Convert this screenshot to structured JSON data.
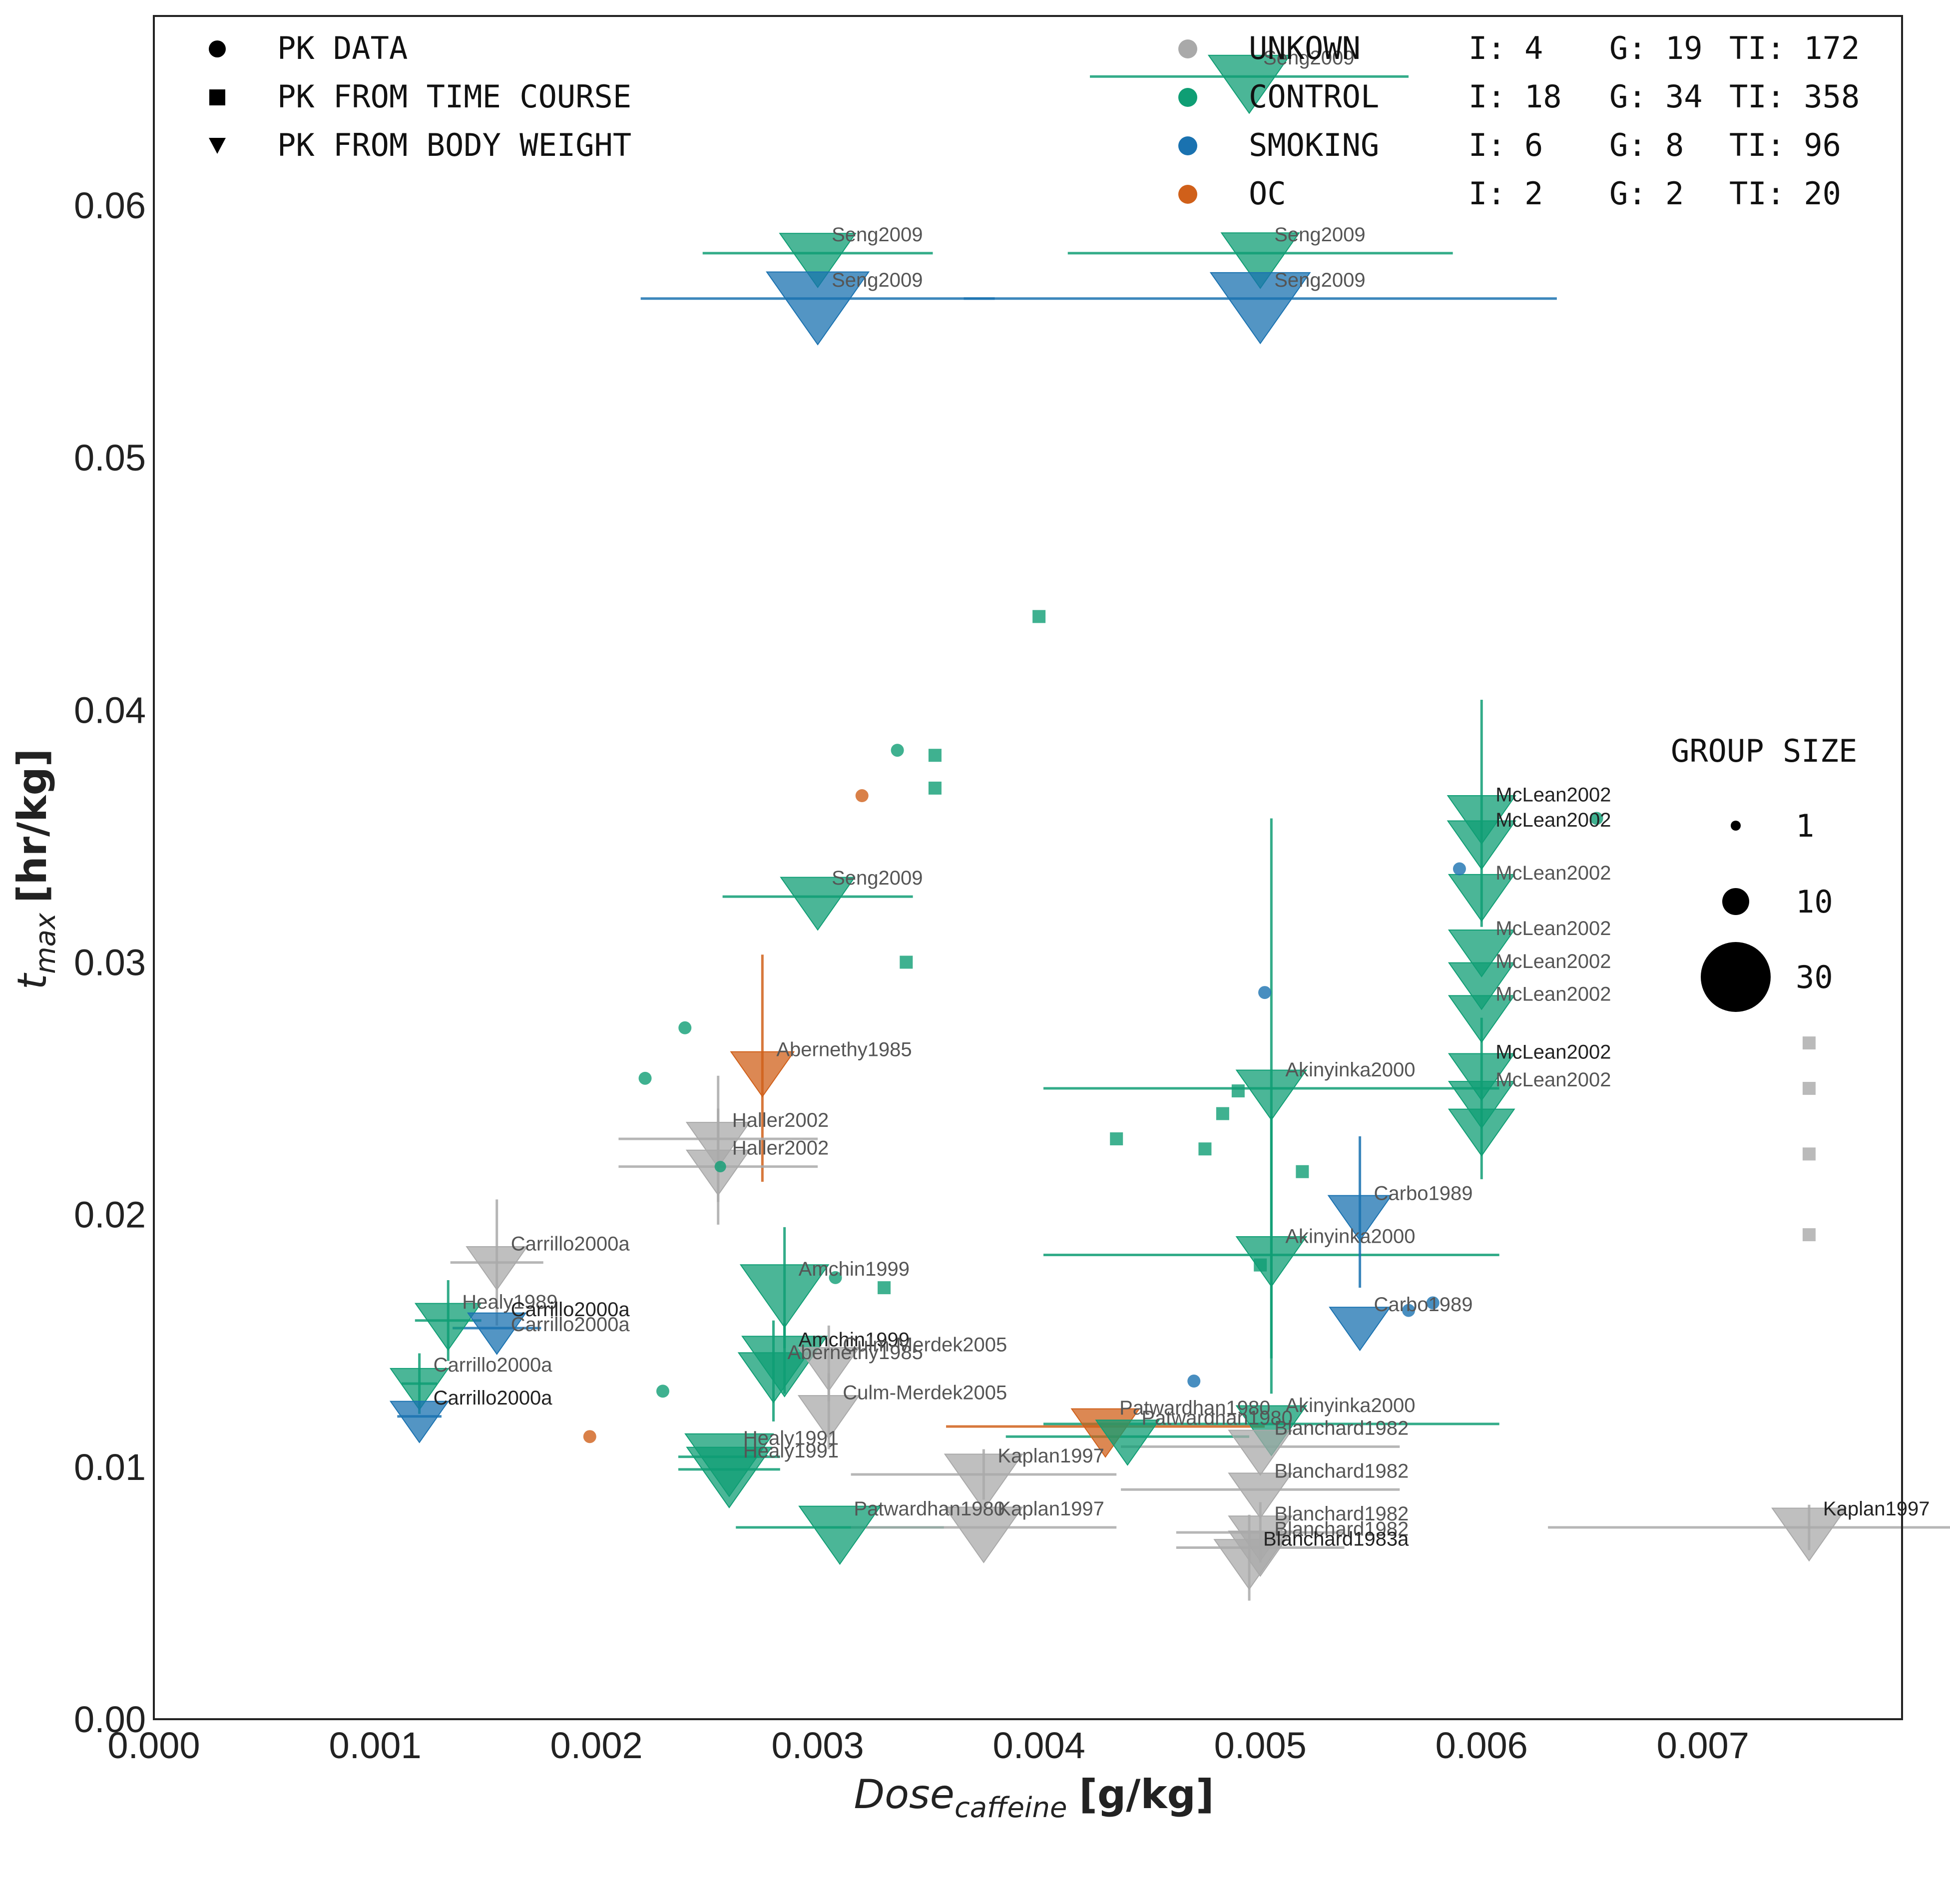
{
  "chart_data": {
    "type": "scatter",
    "xlabel": {
      "main": "Dose",
      "sub": "caffeine",
      "unit": "[g/kg]"
    },
    "ylabel": {
      "main": "t",
      "sub": "max",
      "unit": "[hr/kg]"
    },
    "xlim": [
      0,
      0.0079
    ],
    "ylim": [
      0,
      0.0675
    ],
    "xticks": [
      "0.000",
      "0.001",
      "0.002",
      "0.003",
      "0.004",
      "0.005",
      "0.006",
      "0.007"
    ],
    "yticks": [
      "0.00",
      "0.01",
      "0.02",
      "0.03",
      "0.04",
      "0.05",
      "0.06"
    ],
    "grid": false,
    "colors": {
      "UNKOWN": "#a9a9a9",
      "CONTROL": "#0f9e74",
      "SMOKING": "#1a72b0",
      "OC": "#d0601a"
    },
    "legend_markers": {
      "items": [
        {
          "marker": "circle",
          "label": "PK DATA"
        },
        {
          "marker": "square",
          "label": "PK FROM TIME COURSE"
        },
        {
          "marker": "triangle",
          "label": "PK FROM BODY WEIGHT"
        }
      ]
    },
    "legend_groups": {
      "items": [
        {
          "name": "UNKOWN",
          "color": "#a9a9a9",
          "I": "I: 4",
          "G": "G: 19",
          "TI": "TI: 172"
        },
        {
          "name": "CONTROL",
          "color": "#0f9e74",
          "I": "I: 18",
          "G": "G: 34",
          "TI": "TI: 358"
        },
        {
          "name": "SMOKING",
          "color": "#1a72b0",
          "I": "I: 6",
          "G": "G: 8",
          "TI": "TI: 96"
        },
        {
          "name": "OC",
          "color": "#d0601a",
          "I": "I: 2",
          "G": "G: 2",
          "TI": "TI: 20"
        }
      ]
    },
    "size_legend": {
      "title": "GROUP SIZE",
      "items": [
        {
          "label": "1",
          "n": 1
        },
        {
          "label": "10",
          "n": 10
        },
        {
          "label": "30",
          "n": 30
        }
      ]
    },
    "points": [
      {
        "x": 0.00495,
        "y": 0.0651,
        "cat": "CONTROL",
        "m": "tri",
        "n": 18,
        "xerr": 0.00072,
        "label": "Seng2009"
      },
      {
        "x": 0.003,
        "y": 0.0581,
        "cat": "CONTROL",
        "m": "tri",
        "n": 15,
        "xerr": 0.00052,
        "label": "Seng2009"
      },
      {
        "x": 0.005,
        "y": 0.0581,
        "cat": "CONTROL",
        "m": "tri",
        "n": 16,
        "xerr": 0.00087,
        "label": "Seng2009"
      },
      {
        "x": 0.003,
        "y": 0.0563,
        "cat": "SMOKING",
        "m": "tri",
        "n": 32,
        "xerr": 0.0008,
        "label": "Seng2009"
      },
      {
        "x": 0.005,
        "y": 0.0563,
        "cat": "SMOKING",
        "m": "tri",
        "n": 30,
        "xerr": 0.00134,
        "label": "Seng2009"
      },
      {
        "x": 0.003,
        "y": 0.0326,
        "cat": "CONTROL",
        "m": "tri",
        "n": 14,
        "xerr": 0.00043,
        "label": "Seng2009"
      },
      {
        "x": 0.00275,
        "y": 0.0258,
        "cat": "OC",
        "m": "tri",
        "n": 9,
        "yerr": 0.0045,
        "label": "Abernethy1985"
      },
      {
        "x": 0.00255,
        "y": 0.023,
        "cat": "UNKOWN",
        "m": "tri",
        "n": 9,
        "yerr": 0.0025,
        "xerr": 0.00045,
        "label": "Haller2002"
      },
      {
        "x": 0.00255,
        "y": 0.0219,
        "cat": "UNKOWN",
        "m": "tri",
        "n": 9,
        "yerr": 0.0023,
        "xerr": 0.00045,
        "label": "Haller2002"
      },
      {
        "x": 0.00155,
        "y": 0.0181,
        "cat": "UNKOWN",
        "m": "tri",
        "n": 8,
        "yerr": 0.0025,
        "xerr": 0.00021,
        "label": "Carrillo2000a"
      },
      {
        "x": 0.00133,
        "y": 0.0158,
        "cat": "CONTROL",
        "m": "tri",
        "n": 10,
        "yerr": 0.0016,
        "xerr": 0.00015,
        "label": "Healy1989"
      },
      {
        "x": 0.00155,
        "y": 0.0155,
        "cat": "SMOKING",
        "m": "tri",
        "n": 7,
        "xerr": 0.0002,
        "label": "Carrillo2000a",
        "dark": true
      },
      {
        "x": 0.00155,
        "y": 0.0155,
        "cat": "SMOKING",
        "m": "tri",
        "n": 7,
        "label": "Carrillo2000a",
        "noMarker": true,
        "offY": 30
      },
      {
        "x": 0.0012,
        "y": 0.0133,
        "cat": "CONTROL",
        "m": "tri",
        "n": 7,
        "yerr": 0.0012,
        "xerr": 8e-05,
        "label": "Carrillo2000a"
      },
      {
        "x": 0.0012,
        "y": 0.012,
        "cat": "SMOKING",
        "m": "tri",
        "n": 7,
        "xerr": 0.0001,
        "label": "Carrillo2000a",
        "dark": true
      },
      {
        "x": 0.00285,
        "y": 0.0171,
        "cat": "CONTROL",
        "m": "tri",
        "n": 22,
        "yerr": 0.0024,
        "label": "Amchin1999"
      },
      {
        "x": 0.00285,
        "y": 0.0143,
        "cat": "CONTROL",
        "m": "tri",
        "n": 20,
        "yerr": 0.0014,
        "label": "Amchin1999",
        "dark": true
      },
      {
        "x": 0.0028,
        "y": 0.0138,
        "cat": "CONTROL",
        "m": "tri",
        "n": 12,
        "yerr": 0.002,
        "label": "Abernethy1985"
      },
      {
        "x": 0.00305,
        "y": 0.0141,
        "cat": "UNKOWN",
        "m": "tri",
        "n": 8,
        "yerr": 0.0015,
        "label": "Culm-Merdek2005"
      },
      {
        "x": 0.00305,
        "y": 0.0122,
        "cat": "UNKOWN",
        "m": "tri",
        "n": 8,
        "yerr": 0.0015,
        "label": "Culm-Merdek2005"
      },
      {
        "x": 0.0026,
        "y": 0.0104,
        "cat": "CONTROL",
        "m": "tri",
        "n": 22,
        "xerr": 0.00023,
        "label": "Healy1991"
      },
      {
        "x": 0.0026,
        "y": 0.0099,
        "cat": "CONTROL",
        "m": "tri",
        "n": 20,
        "xerr": 0.00023,
        "label": "Healy1991"
      },
      {
        "x": 0.0031,
        "y": 0.0076,
        "cat": "CONTROL",
        "m": "tri",
        "n": 18,
        "xerr": 0.00047,
        "label": "Patwardhan1980"
      },
      {
        "x": 0.00375,
        "y": 0.0097,
        "cat": "UNKOWN",
        "m": "tri",
        "n": 16,
        "yerr": 0.001,
        "xerr": 0.0006,
        "label": "Kaplan1997"
      },
      {
        "x": 0.00375,
        "y": 0.0076,
        "cat": "UNKOWN",
        "m": "tri",
        "n": 16,
        "xerr": 0.0006,
        "label": "Kaplan1997"
      },
      {
        "x": 0.0043,
        "y": 0.0116,
        "cat": "OC",
        "m": "tri",
        "n": 11,
        "xerr": 0.00072,
        "label": "Patwardhan1980"
      },
      {
        "x": 0.0044,
        "y": 0.0112,
        "cat": "CONTROL",
        "m": "tri",
        "n": 9,
        "xerr": 0.00055,
        "label": "Patwardhan1980"
      },
      {
        "x": 0.00505,
        "y": 0.025,
        "cat": "CONTROL",
        "m": "tri",
        "n": 12,
        "yerr": 0.0107,
        "xerr": 0.00103,
        "label": "Akinyinka2000"
      },
      {
        "x": 0.00505,
        "y": 0.0184,
        "cat": "CONTROL",
        "m": "tri",
        "n": 12,
        "yerr": 0.0055,
        "xerr": 0.00103,
        "label": "Akinyinka2000"
      },
      {
        "x": 0.00505,
        "y": 0.0117,
        "cat": "CONTROL",
        "m": "tri",
        "n": 12,
        "xerr": 0.00103,
        "label": "Akinyinka2000"
      },
      {
        "x": 0.005,
        "y": 0.0108,
        "cat": "UNKOWN",
        "m": "tri",
        "n": 9,
        "xerr": 0.00063,
        "label": "Blanchard1982"
      },
      {
        "x": 0.005,
        "y": 0.0091,
        "cat": "UNKOWN",
        "m": "tri",
        "n": 9,
        "xerr": 0.00063,
        "label": "Blanchard1982"
      },
      {
        "x": 0.005,
        "y": 0.0074,
        "cat": "UNKOWN",
        "m": "tri",
        "n": 9,
        "yerr": 0.0012,
        "xerr": 0.00038,
        "label": "Blanchard1982"
      },
      {
        "x": 0.005,
        "y": 0.0068,
        "cat": "UNKOWN",
        "m": "tri",
        "n": 9,
        "xerr": 0.00038,
        "label": "Blanchard1982"
      },
      {
        "x": 0.00495,
        "y": 0.0064,
        "cat": "UNKOWN",
        "m": "tri",
        "n": 12,
        "yerr": 0.0017,
        "label": "Blanchard1983a",
        "dark": true
      },
      {
        "x": 0.006,
        "y": 0.0359,
        "cat": "CONTROL",
        "m": "tri",
        "n": 11,
        "yerr": 0.0045,
        "label": "McLean2002",
        "dark": true
      },
      {
        "x": 0.006,
        "y": 0.0349,
        "cat": "CONTROL",
        "m": "tri",
        "n": 11,
        "label": "McLean2002",
        "dark": true
      },
      {
        "x": 0.006,
        "y": 0.0328,
        "cat": "CONTROL",
        "m": "tri",
        "n": 10,
        "label": "McLean2002"
      },
      {
        "x": 0.006,
        "y": 0.0306,
        "cat": "CONTROL",
        "m": "tri",
        "n": 10,
        "label": "McLean2002"
      },
      {
        "x": 0.006,
        "y": 0.0293,
        "cat": "CONTROL",
        "m": "tri",
        "n": 10,
        "label": "McLean2002"
      },
      {
        "x": 0.006,
        "y": 0.028,
        "cat": "CONTROL",
        "m": "tri",
        "n": 10,
        "label": "McLean2002"
      },
      {
        "x": 0.006,
        "y": 0.0257,
        "cat": "CONTROL",
        "m": "tri",
        "n": 10,
        "label": "McLean2002",
        "dark": true
      },
      {
        "x": 0.006,
        "y": 0.0246,
        "cat": "CONTROL",
        "m": "tri",
        "n": 10,
        "yerr": 0.0032,
        "label": "McLean2002"
      },
      {
        "x": 0.006,
        "y": 0.0235,
        "cat": "CONTROL",
        "m": "tri",
        "n": 10
      },
      {
        "x": 0.00545,
        "y": 0.0201,
        "cat": "SMOKING",
        "m": "tri",
        "n": 9,
        "yerr": 0.003,
        "label": "Carbo1989"
      },
      {
        "x": 0.00545,
        "y": 0.0157,
        "cat": "SMOKING",
        "m": "tri",
        "n": 8,
        "label": "Carbo1989"
      },
      {
        "x": 0.00748,
        "y": 0.0076,
        "cat": "UNKOWN",
        "m": "tri",
        "n": 14,
        "yerr": 0.0009,
        "xerr": 0.00118,
        "label": "Kaplan1997",
        "dark": true
      },
      {
        "x": 0.00336,
        "y": 0.0384,
        "cat": "CONTROL",
        "m": "circ",
        "n": 2
      },
      {
        "x": 0.0024,
        "y": 0.0274,
        "cat": "CONTROL",
        "m": "circ",
        "n": 2
      },
      {
        "x": 0.00222,
        "y": 0.0254,
        "cat": "CONTROL",
        "m": "circ",
        "n": 2
      },
      {
        "x": 0.0032,
        "y": 0.0366,
        "cat": "OC",
        "m": "circ",
        "n": 2
      },
      {
        "x": 0.00308,
        "y": 0.0175,
        "cat": "CONTROL",
        "m": "circ",
        "n": 2
      },
      {
        "x": 0.0023,
        "y": 0.013,
        "cat": "CONTROL",
        "m": "circ",
        "n": 2
      },
      {
        "x": 0.00197,
        "y": 0.0112,
        "cat": "OC",
        "m": "circ",
        "n": 2
      },
      {
        "x": 0.00256,
        "y": 0.0219,
        "cat": "CONTROL",
        "m": "circ",
        "n": 1
      },
      {
        "x": 0.0059,
        "y": 0.0337,
        "cat": "SMOKING",
        "m": "circ",
        "n": 2
      },
      {
        "x": 0.00502,
        "y": 0.0288,
        "cat": "SMOKING",
        "m": "circ",
        "n": 2
      },
      {
        "x": 0.0047,
        "y": 0.0134,
        "cat": "SMOKING",
        "m": "circ",
        "n": 2
      },
      {
        "x": 0.00567,
        "y": 0.0162,
        "cat": "SMOKING",
        "m": "circ",
        "n": 2
      },
      {
        "x": 0.00578,
        "y": 0.0165,
        "cat": "SMOKING",
        "m": "circ",
        "n": 2
      },
      {
        "x": 0.00652,
        "y": 0.0357,
        "cat": "CONTROL",
        "m": "circ",
        "n": 2
      },
      {
        "x": 0.004,
        "y": 0.0437,
        "cat": "CONTROL",
        "m": "sq",
        "n": 2
      },
      {
        "x": 0.00353,
        "y": 0.0382,
        "cat": "CONTROL",
        "m": "sq",
        "n": 2
      },
      {
        "x": 0.00353,
        "y": 0.0369,
        "cat": "CONTROL",
        "m": "sq",
        "n": 2
      },
      {
        "x": 0.0034,
        "y": 0.03,
        "cat": "CONTROL",
        "m": "sq",
        "n": 2
      },
      {
        "x": 0.0033,
        "y": 0.0171,
        "cat": "CONTROL",
        "m": "sq",
        "n": 2
      },
      {
        "x": 0.00435,
        "y": 0.023,
        "cat": "CONTROL",
        "m": "sq",
        "n": 2
      },
      {
        "x": 0.00475,
        "y": 0.0226,
        "cat": "CONTROL",
        "m": "sq",
        "n": 2
      },
      {
        "x": 0.00483,
        "y": 0.024,
        "cat": "CONTROL",
        "m": "sq",
        "n": 2
      },
      {
        "x": 0.0049,
        "y": 0.0249,
        "cat": "CONTROL",
        "m": "sq",
        "n": 2
      },
      {
        "x": 0.00519,
        "y": 0.0217,
        "cat": "CONTROL",
        "m": "sq",
        "n": 2
      },
      {
        "x": 0.005,
        "y": 0.018,
        "cat": "CONTROL",
        "m": "sq",
        "n": 2
      },
      {
        "x": 0.00748,
        "y": 0.0268,
        "cat": "UNKOWN",
        "m": "sq",
        "n": 2
      },
      {
        "x": 0.00748,
        "y": 0.025,
        "cat": "UNKOWN",
        "m": "sq",
        "n": 2
      },
      {
        "x": 0.00748,
        "y": 0.0224,
        "cat": "UNKOWN",
        "m": "sq",
        "n": 2
      },
      {
        "x": 0.00748,
        "y": 0.0192,
        "cat": "UNKOWN",
        "m": "sq",
        "n": 2
      }
    ]
  }
}
